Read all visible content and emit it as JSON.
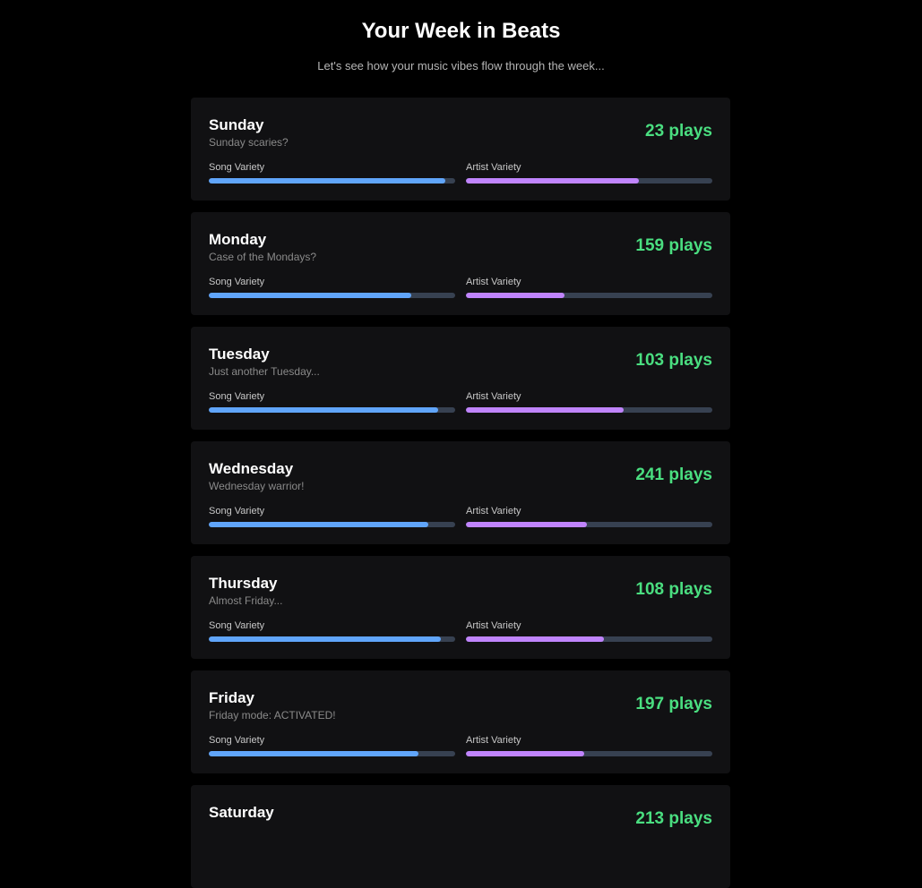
{
  "header": {
    "title": "Your Week in Beats",
    "subtitle": "Let's see how your music vibes flow through the week..."
  },
  "labels": {
    "song": "Song Variety",
    "artist": "Artist Variety"
  },
  "days": [
    {
      "name": "Sunday",
      "subtitle": "Sunday scaries?",
      "plays": "23 plays",
      "song_variety": 96,
      "artist_variety": 70
    },
    {
      "name": "Monday",
      "subtitle": "Case of the Mondays?",
      "plays": "159 plays",
      "song_variety": 82,
      "artist_variety": 40
    },
    {
      "name": "Tuesday",
      "subtitle": "Just another Tuesday...",
      "plays": "103 plays",
      "song_variety": 93,
      "artist_variety": 64
    },
    {
      "name": "Wednesday",
      "subtitle": "Wednesday warrior!",
      "plays": "241 plays",
      "song_variety": 89,
      "artist_variety": 49
    },
    {
      "name": "Thursday",
      "subtitle": "Almost Friday...",
      "plays": "108 plays",
      "song_variety": 94,
      "artist_variety": 56
    },
    {
      "name": "Friday",
      "subtitle": "Friday mode: ACTIVATED!",
      "plays": "197 plays",
      "song_variety": 85,
      "artist_variety": 48
    },
    {
      "name": "Saturday",
      "plays": "213 plays"
    }
  ]
}
